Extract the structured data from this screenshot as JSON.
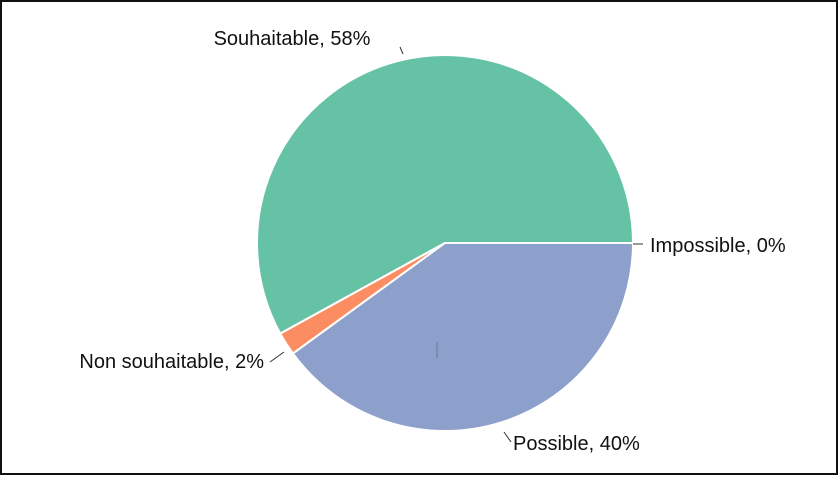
{
  "chart_data": {
    "type": "pie",
    "slices": [
      {
        "label": "Souhaitable, 58%",
        "value": 58,
        "color": "#66c2a5"
      },
      {
        "label": "Impossible, 0%",
        "value": 0,
        "color": "#fc8d62"
      },
      {
        "label": "Possible, 40%",
        "value": 40,
        "color": "#8da0cb"
      },
      {
        "label": "Non souhaitable, 2%",
        "value": 2,
        "color": "#fc8d62"
      }
    ]
  }
}
